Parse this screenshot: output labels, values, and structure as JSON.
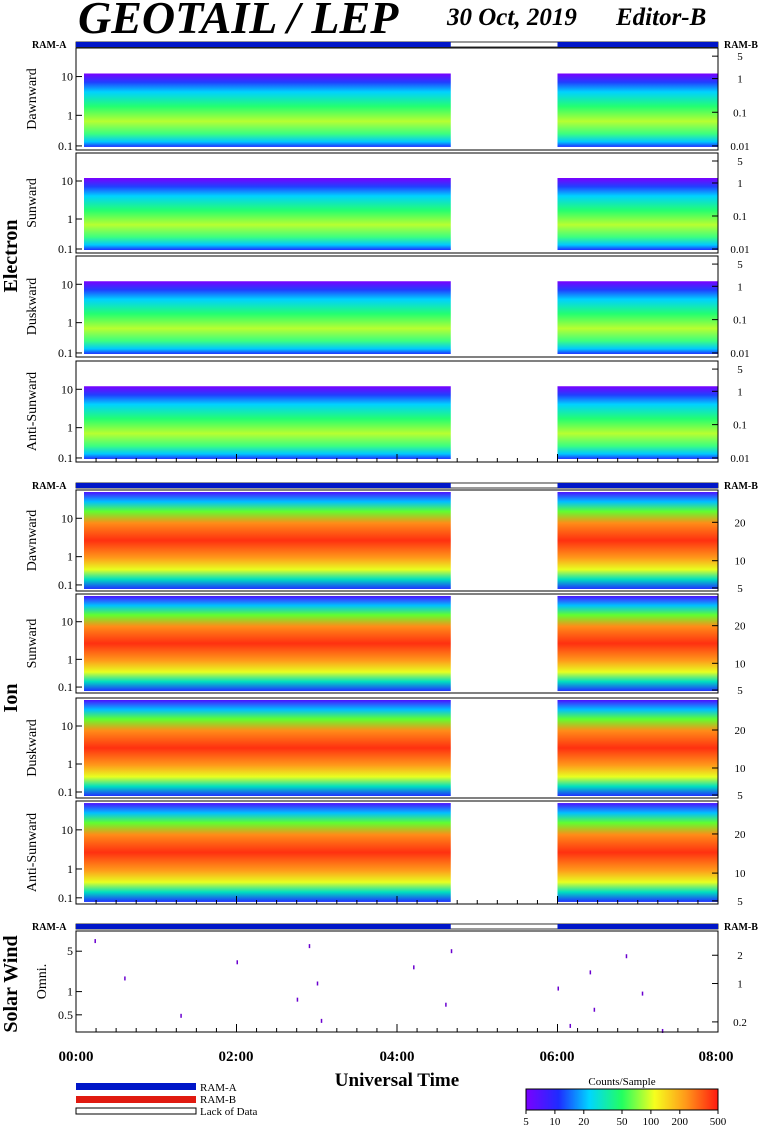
{
  "title": "GEOTAIL / LEP",
  "date": "30 Oct, 2019",
  "editor": "Editor-B",
  "labels": {
    "ram_a": "RAM-A",
    "ram_b": "RAM-B",
    "xlabel": "Universal Time",
    "colorbar_title": "Counts/Sample",
    "electron": "Electron",
    "ion": "Ion",
    "solar_wind": "Solar Wind",
    "legend_ram_a": "RAM-A",
    "legend_ram_b": "RAM-B",
    "legend_lack": "Lack of Data"
  },
  "colors": {
    "ram_a": "#0016c8",
    "ram_b": "#e01a10",
    "lack": "#ffffff"
  },
  "chart_data": {
    "type": "heatmap",
    "x_ticks": [
      "00:00",
      "02:00",
      "04:00",
      "06:00",
      "08:00"
    ],
    "xlim_hours": [
      0,
      8
    ],
    "data_gap_hours": [
      4.67,
      6.0
    ],
    "ram_a_intervals_hours": [
      [
        0,
        4.67
      ],
      [
        6.0,
        8.0
      ]
    ],
    "colorbar": {
      "scale": "log",
      "range": [
        5,
        500
      ],
      "ticks": [
        "5",
        "10",
        "20",
        "50",
        "100",
        "200",
        "500"
      ]
    },
    "groups": [
      {
        "name": "Electron",
        "panels": [
          "Dawnward",
          "Sunward",
          "Duskward",
          "Anti-Sunward"
        ],
        "left_ticks": [
          "10",
          "1",
          "0.1"
        ],
        "right_ticks": [
          "5",
          "1",
          "0.1",
          "0.01"
        ]
      },
      {
        "name": "Ion",
        "panels": [
          "Dawnward",
          "Sunward",
          "Duskward",
          "Anti-Sunward"
        ],
        "left_ticks": [
          "10",
          "1",
          "0.1"
        ],
        "right_ticks": [
          "20",
          "10",
          "5"
        ]
      },
      {
        "name": "Solar Wind",
        "panels": [
          "Omni."
        ],
        "left_ticks": [
          "5",
          "1",
          "0.5"
        ],
        "right_ticks": [
          "2",
          "1",
          "0.2"
        ],
        "scatter_points_hours": [
          0.23,
          0.6,
          1.3,
          2.0,
          2.75,
          2.9,
          3.0,
          3.05,
          4.2,
          4.6,
          4.67,
          6.0,
          6.15,
          6.4,
          6.45,
          6.85,
          7.05,
          7.3
        ]
      }
    ]
  }
}
